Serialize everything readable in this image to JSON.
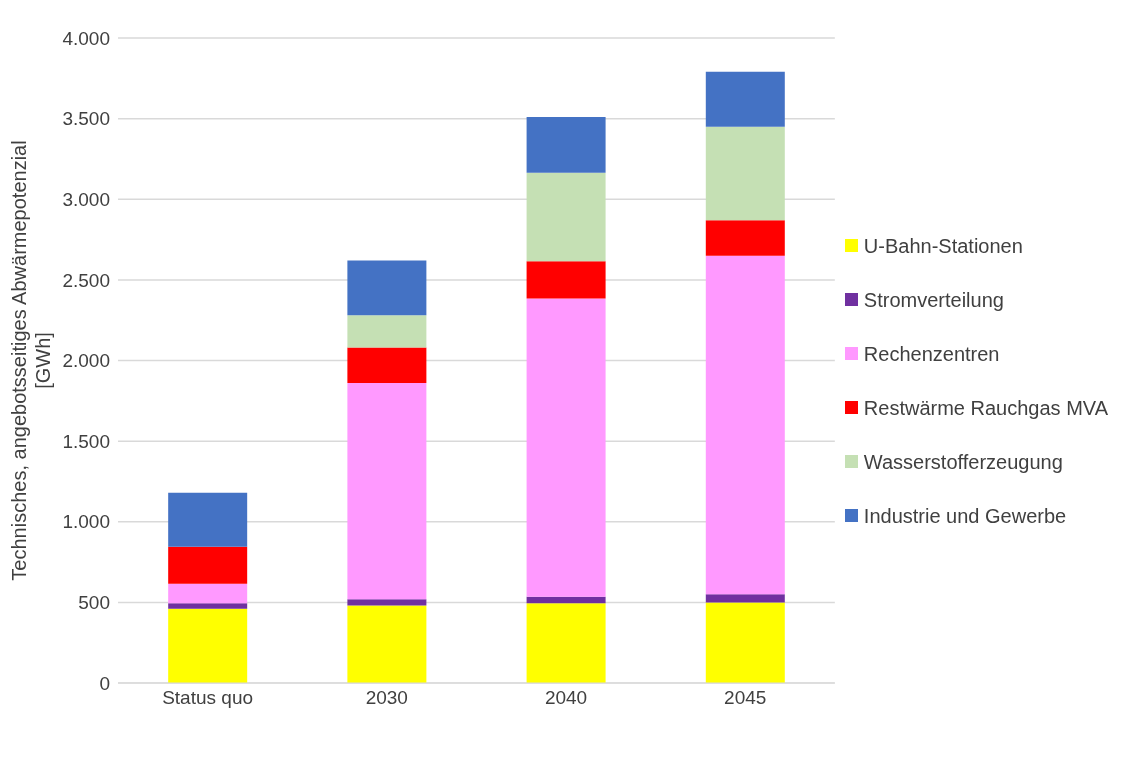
{
  "chart_data": {
    "type": "bar",
    "stacked": true,
    "ylabel": "Technisches, angebotsseitiges Abwärmepotenzial [GWh]",
    "categories": [
      "Status quo",
      "2030",
      "2040",
      "2045"
    ],
    "series": [
      {
        "name": "U-Bahn-Stationen",
        "color": "#ffff00",
        "values": [
          460,
          480,
          495,
          500
        ]
      },
      {
        "name": "Stromverteilung",
        "color": "#7030a0",
        "values": [
          35,
          40,
          40,
          50
        ]
      },
      {
        "name": "Rechenzentren",
        "color": "#ff99ff",
        "values": [
          120,
          1340,
          1850,
          2100
        ]
      },
      {
        "name": "Restwärme Rauchgas MVA",
        "color": "#ff0000",
        "values": [
          230,
          220,
          230,
          220
        ]
      },
      {
        "name": "Wasserstofferzeugung",
        "color": "#c5e0b4",
        "values": [
          0,
          200,
          550,
          580
        ]
      },
      {
        "name": "Industrie und Gewerbe",
        "color": "#4472c4",
        "values": [
          335,
          340,
          345,
          340
        ]
      }
    ],
    "ylim": [
      0,
      4000
    ],
    "yticks": [
      0,
      500,
      {
        "value": 1000,
        "label": "1.000"
      },
      {
        "value": 1500,
        "label": "1.500"
      },
      {
        "value": 2000,
        "label": "2.000"
      },
      {
        "value": 2500,
        "label": "2.500"
      },
      {
        "value": 3000,
        "label": "3.000"
      },
      {
        "value": 3500,
        "label": "3.500"
      },
      {
        "value": 4000,
        "label": "4.000"
      }
    ],
    "grid": "y",
    "legend": "right"
  }
}
